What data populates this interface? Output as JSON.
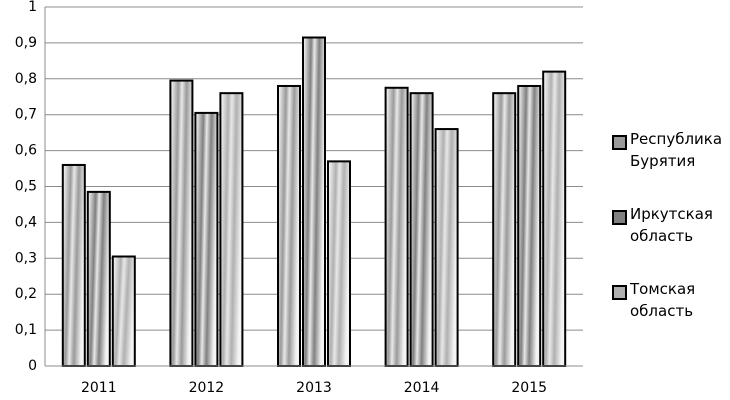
{
  "chart_data": {
    "type": "bar",
    "categories": [
      "2011",
      "2012",
      "2013",
      "2014",
      "2015"
    ],
    "series": [
      {
        "name": "Республика Бурятия",
        "color": "#9a9a9a",
        "values": [
          0.56,
          0.795,
          0.78,
          0.775,
          0.76
        ]
      },
      {
        "name": "Иркутская область",
        "color": "#808080",
        "values": [
          0.485,
          0.705,
          0.915,
          0.76,
          0.78
        ]
      },
      {
        "name": "Томская область",
        "color": "#b0b0b0",
        "values": [
          0.305,
          0.76,
          0.57,
          0.66,
          0.82
        ]
      }
    ],
    "ylim": [
      0,
      1
    ],
    "yticks": [
      0,
      {
        "value": 0.1,
        "label": "0,1"
      },
      {
        "value": 0.2,
        "label": "0,2"
      },
      {
        "value": 0.3,
        "label": "0,3"
      },
      {
        "value": 0.4,
        "label": "0,4"
      },
      {
        "value": 0.5,
        "label": "0,5"
      },
      {
        "value": 0.6,
        "label": "0,6"
      },
      {
        "value": 0.7,
        "label": "0,7"
      },
      {
        "value": 0.8,
        "label": "0,8"
      },
      {
        "value": 0.9,
        "label": "0,9"
      },
      1
    ],
    "grid": true,
    "legend": "right"
  }
}
